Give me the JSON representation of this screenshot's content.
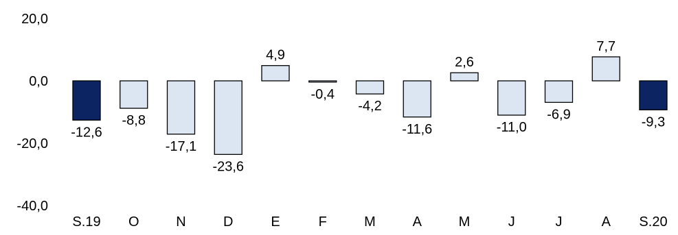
{
  "chart_data": {
    "type": "bar",
    "title": "",
    "xlabel": "",
    "ylabel": "",
    "categories": [
      "S.19",
      "O",
      "N",
      "D",
      "E",
      "F",
      "M",
      "A",
      "M",
      "J",
      "J",
      "A",
      "S.20"
    ],
    "values": [
      -12.6,
      -8.8,
      -17.1,
      -23.6,
      4.9,
      -0.4,
      -4.2,
      -11.6,
      2.6,
      -11.0,
      -6.9,
      7.7,
      -9.3
    ],
    "value_labels": [
      "-12,6",
      "-8,8",
      "-17,1",
      "-23,6",
      "4,9",
      "-0,4",
      "-4,2",
      "-11,6",
      "2,6",
      "-11,0",
      "-6,9",
      "7,7",
      "-9,3"
    ],
    "ylim": [
      -40,
      20
    ],
    "y_ticks": [
      20,
      0,
      -20,
      -40
    ],
    "y_tick_labels": [
      "20,0",
      "0,0",
      "-20,0",
      "-40,0"
    ],
    "grid": false,
    "legend": "none",
    "colors": {
      "highlight_fill": "#0c2461",
      "bar_fill": "#dce6f2",
      "bar_stroke": "#000000"
    },
    "highlighted_indices": [
      0,
      12
    ]
  }
}
